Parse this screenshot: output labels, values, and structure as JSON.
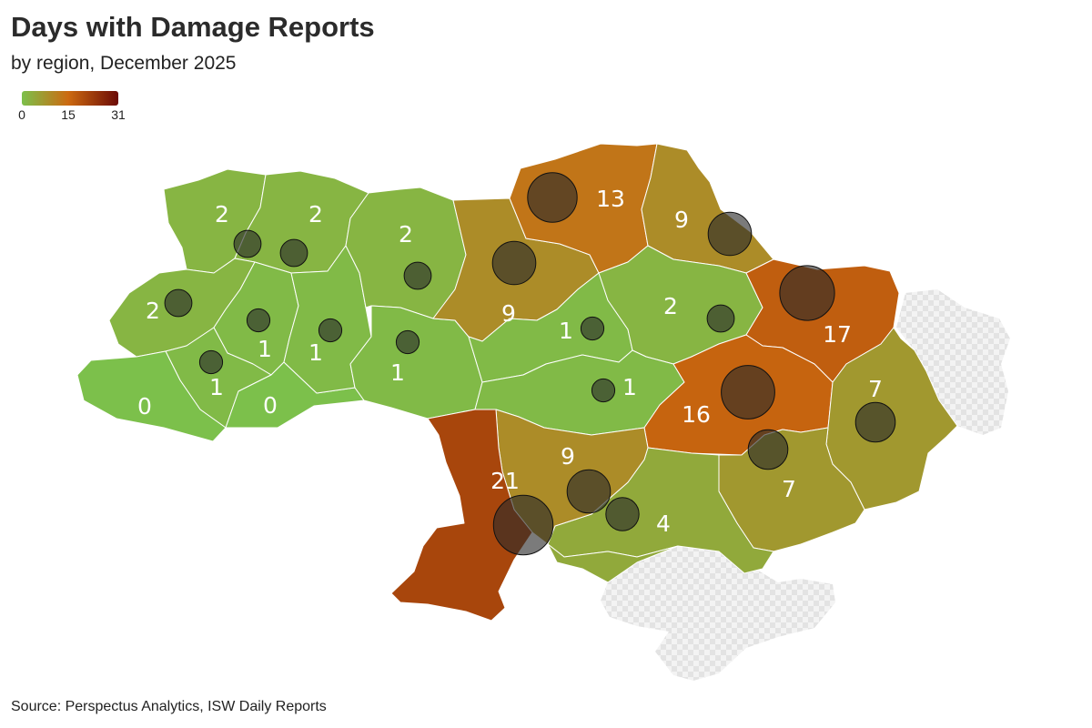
{
  "header": {
    "title": "Days with Damage Reports",
    "subtitle": "by region, December 2025"
  },
  "legend": {
    "min_label": "0",
    "mid_label": "15",
    "max_label": "31",
    "min": 0,
    "mid": 15,
    "max": 31,
    "colors": [
      "#7cc04b",
      "#cc6a10",
      "#6b0a06"
    ]
  },
  "source": "Source: Perspectus Analytics, ISW Daily Reports",
  "colors": {
    "occupied": "#e3e3e3",
    "border": "#ffffff",
    "bubble": "#2a2a2a"
  },
  "regions": [
    {
      "name": "Volyn",
      "value": 2,
      "label": "2"
    },
    {
      "name": "Rivne",
      "value": 2,
      "label": "2"
    },
    {
      "name": "Lviv",
      "value": 2,
      "label": "2"
    },
    {
      "name": "Ternopil",
      "value": 1,
      "label": "1"
    },
    {
      "name": "Ivano-Frankivsk",
      "value": 1,
      "label": "1"
    },
    {
      "name": "Zakarpattia",
      "value": 0,
      "label": "0"
    },
    {
      "name": "Chernivtsi",
      "value": 0,
      "label": "0"
    },
    {
      "name": "Khmelnytskyi",
      "value": 1,
      "label": "1"
    },
    {
      "name": "Zhytomyr",
      "value": 2,
      "label": "2"
    },
    {
      "name": "Vinnytsia",
      "value": 1,
      "label": "1"
    },
    {
      "name": "Kyiv",
      "value": 9,
      "label": "9"
    },
    {
      "name": "Chernihiv",
      "value": 13,
      "label": "13"
    },
    {
      "name": "Sumy",
      "value": 9,
      "label": "9"
    },
    {
      "name": "Cherkasy",
      "value": 1,
      "label": "1"
    },
    {
      "name": "Poltava",
      "value": 2,
      "label": "2"
    },
    {
      "name": "Kharkiv",
      "value": 17,
      "label": "17"
    },
    {
      "name": "Kirovohrad",
      "value": 1,
      "label": "1"
    },
    {
      "name": "Dnipropetrovsk",
      "value": 16,
      "label": "16"
    },
    {
      "name": "Luhansk",
      "value": 7,
      "label": "7"
    },
    {
      "name": "Donetsk",
      "value": 7,
      "label": "7"
    },
    {
      "name": "Zaporizhzhia",
      "value": 4,
      "label": "4"
    },
    {
      "name": "Mykolaiv",
      "value": 9,
      "label": "9"
    },
    {
      "name": "Odesa",
      "value": 21,
      "label": "21"
    },
    {
      "name": "Kherson",
      "value": 4,
      "label": ""
    }
  ]
}
